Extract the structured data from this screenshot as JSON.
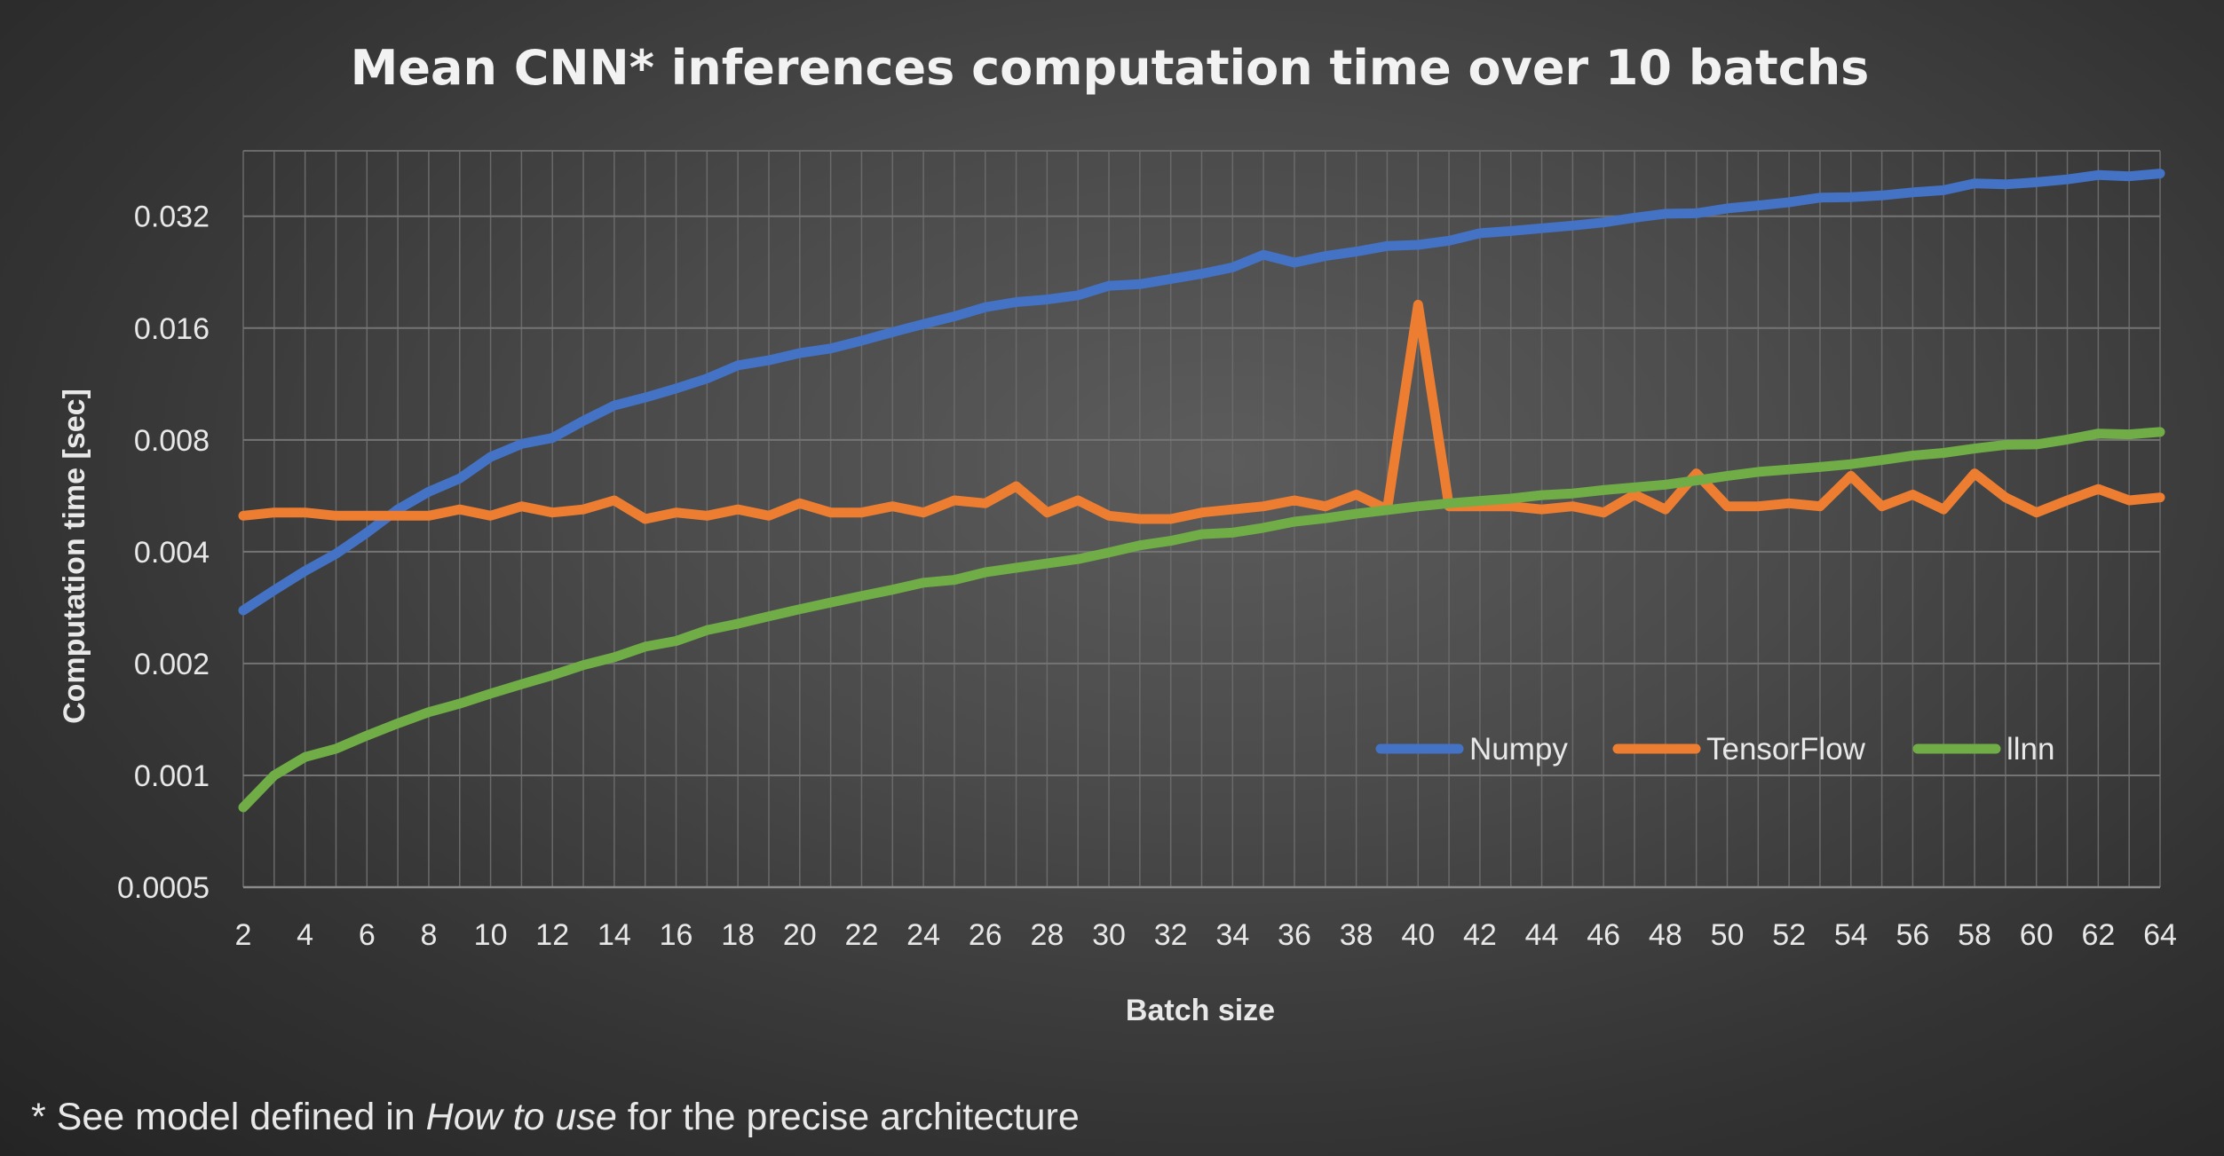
{
  "chart_data": {
    "type": "line",
    "title": "Mean CNN* inferences computation time over 10 batchs",
    "xlabel": "Batch size",
    "ylabel": "Computation time [sec]",
    "yscale": "log2",
    "ylim": [
      0.0005,
      0.048
    ],
    "yticks": [
      0.0005,
      0.001,
      0.002,
      0.004,
      0.008,
      0.016,
      0.032
    ],
    "ytick_labels": [
      "0.0005",
      "0.001",
      "0.002",
      "0.004",
      "0.008",
      "0.016",
      "0.032"
    ],
    "xlim": [
      2,
      64
    ],
    "xticks": [
      2,
      4,
      6,
      8,
      10,
      12,
      14,
      16,
      18,
      20,
      22,
      24,
      26,
      28,
      30,
      32,
      34,
      36,
      38,
      40,
      42,
      44,
      46,
      48,
      50,
      52,
      54,
      56,
      58,
      60,
      62,
      64
    ],
    "grid": true,
    "legend_position": "inside-lower-right",
    "footnote_prefix": "* See model defined in ",
    "footnote_emph": "How to use",
    "footnote_suffix": " for the precise architecture",
    "x": [
      2,
      3,
      4,
      5,
      6,
      7,
      8,
      9,
      10,
      11,
      12,
      13,
      14,
      15,
      16,
      17,
      18,
      19,
      20,
      21,
      22,
      23,
      24,
      25,
      26,
      27,
      28,
      29,
      30,
      31,
      32,
      33,
      34,
      35,
      36,
      37,
      38,
      39,
      40,
      41,
      42,
      43,
      44,
      45,
      46,
      47,
      48,
      49,
      50,
      51,
      52,
      53,
      54,
      55,
      56,
      57,
      58,
      59,
      60,
      61,
      62,
      63,
      64
    ],
    "series": [
      {
        "name": "Numpy",
        "color": "#4472c4",
        "values": [
          0.00278,
          0.00315,
          0.00355,
          0.00395,
          0.0045,
          0.0052,
          0.0058,
          0.0063,
          0.0072,
          0.0078,
          0.0081,
          0.009,
          0.0099,
          0.0104,
          0.011,
          0.0117,
          0.0127,
          0.0131,
          0.0137,
          0.0141,
          0.0148,
          0.0156,
          0.0164,
          0.0172,
          0.0182,
          0.0188,
          0.0191,
          0.0196,
          0.0208,
          0.021,
          0.0217,
          0.0224,
          0.0233,
          0.0252,
          0.024,
          0.025,
          0.0257,
          0.0266,
          0.0268,
          0.0275,
          0.0288,
          0.0292,
          0.0297,
          0.0302,
          0.0308,
          0.0317,
          0.0325,
          0.0326,
          0.0336,
          0.0342,
          0.0349,
          0.0359,
          0.036,
          0.0364,
          0.0371,
          0.0376,
          0.0392,
          0.039,
          0.0395,
          0.0402,
          0.0413,
          0.041,
          0.0417
        ]
      },
      {
        "name": "TensorFlow",
        "color": "#ed7d31",
        "values": [
          0.005,
          0.0051,
          0.0051,
          0.005,
          0.005,
          0.005,
          0.005,
          0.0052,
          0.005,
          0.0053,
          0.0051,
          0.0052,
          0.0055,
          0.0049,
          0.0051,
          0.005,
          0.0052,
          0.005,
          0.0054,
          0.0051,
          0.0051,
          0.0053,
          0.0051,
          0.0055,
          0.0054,
          0.006,
          0.0051,
          0.0055,
          0.005,
          0.0049,
          0.0049,
          0.0051,
          0.0052,
          0.0053,
          0.0055,
          0.0053,
          0.0057,
          0.0052,
          0.0185,
          0.0053,
          0.0053,
          0.0053,
          0.0052,
          0.0053,
          0.0051,
          0.0057,
          0.0052,
          0.0065,
          0.0053,
          0.0053,
          0.0054,
          0.0053,
          0.0064,
          0.0053,
          0.0057,
          0.0052,
          0.0065,
          0.0056,
          0.0051,
          0.0055,
          0.0059,
          0.0055,
          0.0056
        ]
      },
      {
        "name": "llnn",
        "color": "#70ad47",
        "values": [
          0.00082,
          0.001,
          0.00112,
          0.00118,
          0.00128,
          0.00138,
          0.00148,
          0.00156,
          0.00166,
          0.00176,
          0.00186,
          0.00198,
          0.00208,
          0.00222,
          0.0023,
          0.00246,
          0.00256,
          0.00268,
          0.0028,
          0.00292,
          0.00304,
          0.00316,
          0.0033,
          0.00336,
          0.00352,
          0.00362,
          0.00372,
          0.00382,
          0.00398,
          0.00416,
          0.00428,
          0.00446,
          0.0045,
          0.00464,
          0.00482,
          0.00492,
          0.00506,
          0.00518,
          0.0053,
          0.0054,
          0.00548,
          0.00556,
          0.00568,
          0.00574,
          0.00586,
          0.00596,
          0.00606,
          0.00622,
          0.0064,
          0.00656,
          0.00666,
          0.00676,
          0.00688,
          0.00706,
          0.00726,
          0.00738,
          0.00758,
          0.00776,
          0.00778,
          0.00802,
          0.00832,
          0.00828,
          0.0084
        ]
      }
    ]
  }
}
